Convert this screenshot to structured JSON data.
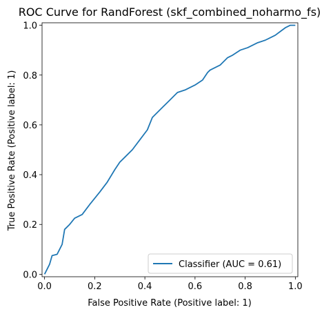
{
  "chart_data": {
    "type": "line",
    "title": "ROC Curve for RandForest (skf_combined_noharmo_fs)",
    "xlabel": "False Positive Rate (Positive label: 1)",
    "ylabel": "True Positive Rate (Positive label: 1)",
    "xlim": [
      -0.01,
      1.01
    ],
    "ylim": [
      -0.01,
      1.01
    ],
    "xticks": [
      "0.0",
      "0.2",
      "0.4",
      "0.6",
      "0.8",
      "1.0"
    ],
    "yticks": [
      "0.0",
      "0.2",
      "0.4",
      "0.6",
      "0.8",
      "1.0"
    ],
    "grid": false,
    "legend_position": "lower-right",
    "series": [
      {
        "name": "Classifier (AUC = 0.61)",
        "color": "#1f77b4",
        "x": [
          0.0,
          0.01,
          0.02,
          0.03,
          0.05,
          0.06,
          0.07,
          0.075,
          0.08,
          0.1,
          0.12,
          0.15,
          0.18,
          0.22,
          0.25,
          0.28,
          0.3,
          0.32,
          0.35,
          0.38,
          0.41,
          0.43,
          0.44,
          0.47,
          0.5,
          0.53,
          0.56,
          0.6,
          0.63,
          0.65,
          0.66,
          0.68,
          0.7,
          0.73,
          0.75,
          0.78,
          0.81,
          0.85,
          0.88,
          0.9,
          0.92,
          0.94,
          0.96,
          0.98,
          1.0
        ],
        "y": [
          0.0,
          0.02,
          0.04,
          0.075,
          0.08,
          0.1,
          0.12,
          0.15,
          0.18,
          0.2,
          0.225,
          0.24,
          0.28,
          0.33,
          0.37,
          0.42,
          0.45,
          0.47,
          0.5,
          0.54,
          0.58,
          0.63,
          0.64,
          0.67,
          0.7,
          0.73,
          0.74,
          0.76,
          0.78,
          0.81,
          0.82,
          0.83,
          0.84,
          0.87,
          0.88,
          0.9,
          0.91,
          0.93,
          0.94,
          0.95,
          0.96,
          0.975,
          0.99,
          1.0,
          1.0
        ]
      }
    ]
  }
}
